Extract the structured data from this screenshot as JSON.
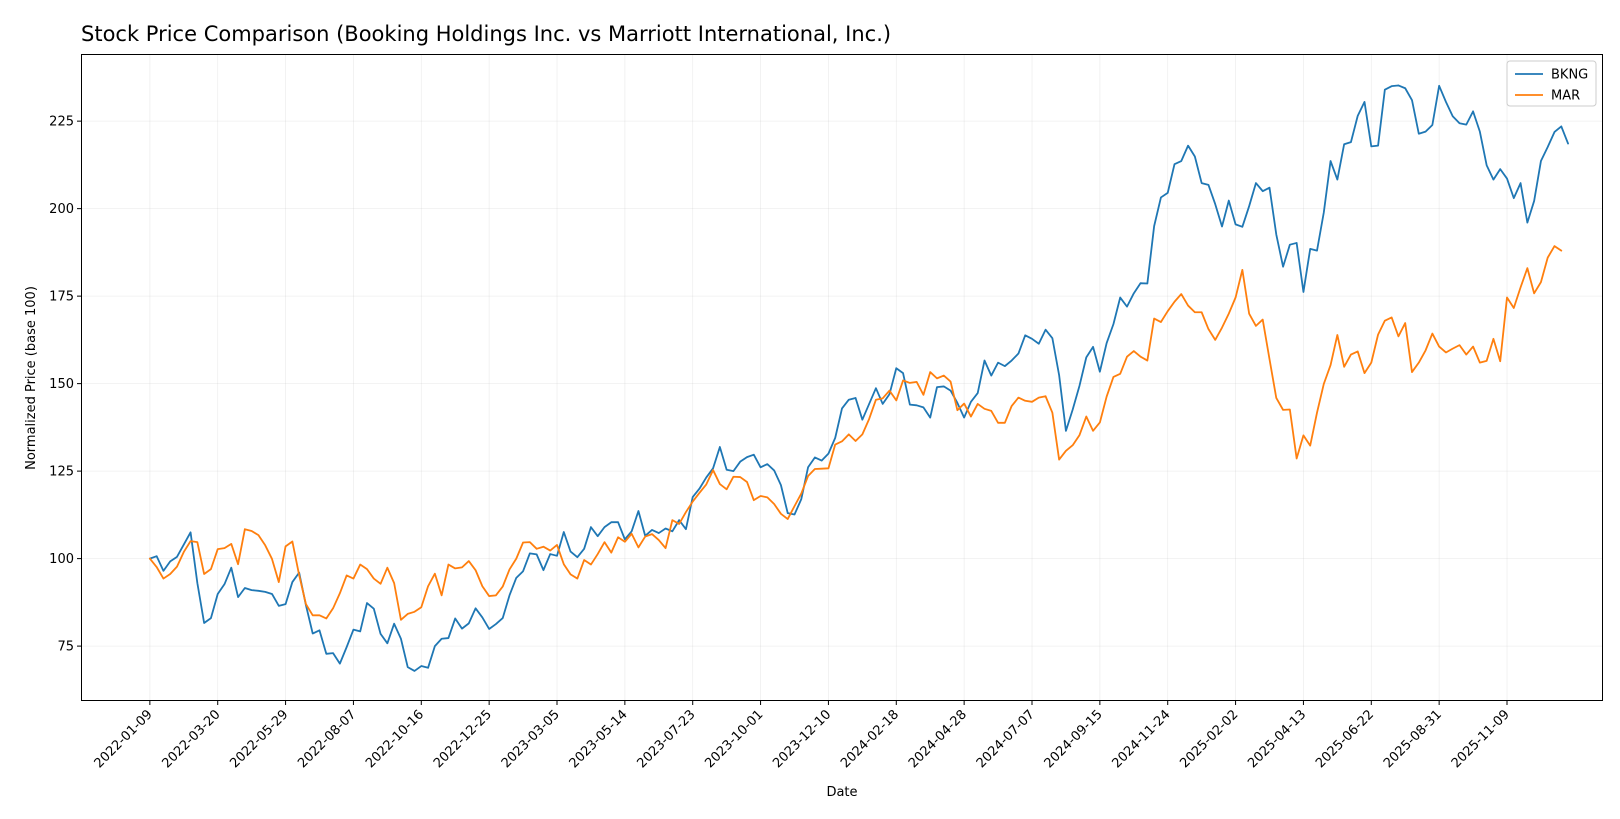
{
  "chart_data": {
    "type": "line",
    "title": "Stock Price Comparison (Booking Holdings Inc. vs Marriott International, Inc.)",
    "xlabel": "Date",
    "ylabel": "Normalized Price (base 100)",
    "ylim": [
      59.6,
      243.9
    ],
    "yticks": [
      75,
      100,
      125,
      150,
      175,
      200,
      225
    ],
    "x_start": "2022-01-09",
    "x_step_days": 7,
    "xlim_weeks": [
      -10,
      214
    ],
    "xticks": [
      {
        "label": "2022-01-09",
        "week": 0
      },
      {
        "label": "2022-03-20",
        "week": 10
      },
      {
        "label": "2022-05-29",
        "week": 20
      },
      {
        "label": "2022-08-07",
        "week": 30
      },
      {
        "label": "2022-10-16",
        "week": 40
      },
      {
        "label": "2022-12-25",
        "week": 50
      },
      {
        "label": "2023-03-05",
        "week": 60
      },
      {
        "label": "2023-05-14",
        "week": 70
      },
      {
        "label": "2023-07-23",
        "week": 80
      },
      {
        "label": "2023-10-01",
        "week": 90
      },
      {
        "label": "2023-12-10",
        "week": 100
      },
      {
        "label": "2024-02-18",
        "week": 110
      },
      {
        "label": "2024-04-28",
        "week": 120
      },
      {
        "label": "2024-07-07",
        "week": 130
      },
      {
        "label": "2024-09-15",
        "week": 140
      },
      {
        "label": "2024-11-24",
        "week": 150
      },
      {
        "label": "2025-02-02",
        "week": 160
      },
      {
        "label": "2025-04-13",
        "week": 170
      },
      {
        "label": "2025-06-22",
        "week": 180
      },
      {
        "label": "2025-08-31",
        "week": 190
      },
      {
        "label": "2025-11-09",
        "week": 200
      }
    ],
    "grid": true,
    "legend": "top-right",
    "series": [
      {
        "name": "BKNG",
        "color": "#1f77b4",
        "values": [
          100.0,
          100.7,
          96.5,
          99.2,
          100.5,
          104.0,
          107.5,
          93.0,
          81.6,
          83.0,
          89.9,
          92.7,
          97.4,
          89.0,
          91.6,
          91.0,
          90.8,
          90.5,
          89.9,
          86.5,
          87.0,
          93.3,
          96.0,
          86.7,
          78.6,
          79.5,
          72.8,
          73.0,
          70.0,
          74.7,
          79.7,
          79.2,
          87.3,
          85.7,
          78.5,
          75.8,
          81.4,
          77.1,
          69.0,
          67.9,
          69.3,
          68.8,
          75.0,
          77.1,
          77.3,
          82.9,
          80.0,
          81.5,
          85.8,
          83.2,
          79.9,
          81.3,
          83.0,
          89.5,
          94.5,
          96.4,
          101.5,
          101.2,
          96.7,
          101.3,
          100.8,
          107.6,
          102.0,
          100.4,
          102.8,
          109.0,
          106.4,
          109.0,
          110.4,
          110.4,
          105.5,
          107.8,
          113.6,
          106.5,
          108.2,
          107.3,
          108.6,
          107.8,
          111.0,
          108.4,
          117.6,
          120.0,
          123.2,
          125.8,
          131.9,
          125.4,
          125.0,
          127.7,
          129.0,
          129.7,
          126.1,
          127.0,
          125.2,
          121.0,
          113.0,
          112.6,
          117.0,
          126.1,
          128.9,
          128.0,
          130.0,
          134.5,
          142.9,
          145.4,
          145.9,
          139.7,
          144.2,
          148.7,
          144.2,
          147.0,
          154.4,
          153.0,
          144.0,
          143.8,
          143.2,
          140.3,
          149.0,
          149.2,
          148.0,
          144.5,
          140.3,
          144.8,
          147.3,
          156.6,
          152.3,
          156.0,
          155.0,
          156.6,
          158.6,
          163.8,
          162.8,
          161.4,
          165.4,
          163.0,
          152.4,
          136.5,
          142.6,
          149.4,
          157.5,
          160.5,
          153.4,
          161.6,
          167.0,
          174.6,
          172.0,
          175.8,
          178.7,
          178.6,
          195.0,
          203.2,
          204.5,
          212.7,
          213.6,
          218.0,
          214.9,
          207.3,
          206.8,
          201.3,
          194.9,
          202.3,
          195.5,
          194.8,
          200.7,
          207.3,
          205.0,
          206.0,
          192.6,
          183.4,
          189.7,
          190.2,
          176.2,
          188.5,
          188.0,
          198.9,
          213.6,
          208.3,
          218.4,
          219.0,
          226.5,
          230.5,
          217.8,
          218.0,
          234.0,
          235.0,
          235.2,
          234.4,
          231.0,
          221.4,
          222.0,
          223.9,
          235.1,
          230.5,
          226.4,
          224.4,
          224.0,
          227.8,
          222.0,
          212.4,
          208.3,
          211.3,
          208.6,
          203.0,
          207.3,
          196.0,
          202.2,
          213.6,
          217.6,
          221.9,
          223.5,
          218.6
        ]
      },
      {
        "name": "MAR",
        "color": "#ff7f0e",
        "values": [
          100.0,
          97.6,
          94.3,
          95.6,
          97.7,
          101.9,
          105.0,
          104.7,
          95.6,
          97.0,
          102.7,
          103.0,
          104.2,
          98.4,
          108.4,
          107.9,
          106.7,
          103.8,
          99.9,
          93.3,
          103.5,
          104.9,
          95.3,
          87.0,
          83.8,
          83.8,
          82.9,
          85.8,
          90.1,
          95.2,
          94.3,
          98.3,
          97.0,
          94.3,
          92.8,
          97.4,
          93.0,
          82.5,
          84.2,
          84.8,
          86.1,
          92.1,
          95.7,
          89.5,
          98.3,
          97.2,
          97.5,
          99.3,
          96.7,
          92.1,
          89.3,
          89.5,
          92.0,
          96.9,
          100.0,
          104.6,
          104.7,
          102.8,
          103.4,
          102.3,
          103.9,
          98.4,
          95.5,
          94.3,
          99.6,
          98.3,
          101.3,
          104.7,
          101.7,
          106.1,
          104.8,
          107.1,
          103.2,
          106.3,
          107.0,
          105.3,
          103.0,
          111.0,
          109.9,
          113.3,
          116.3,
          118.8,
          121.2,
          125.3,
          121.3,
          119.8,
          123.4,
          123.3,
          121.9,
          116.7,
          117.9,
          117.5,
          115.6,
          112.8,
          111.3,
          115.0,
          118.6,
          123.6,
          125.6,
          125.7,
          125.8,
          132.6,
          133.5,
          135.5,
          133.6,
          135.5,
          139.9,
          145.4,
          145.8,
          148.0,
          145.2,
          150.9,
          150.2,
          150.5,
          146.8,
          153.3,
          151.5,
          152.3,
          150.6,
          142.4,
          144.3,
          140.6,
          144.2,
          142.8,
          142.2,
          138.8,
          138.8,
          143.6,
          146.0,
          145.1,
          144.8,
          146.0,
          146.4,
          141.7,
          128.3,
          130.8,
          132.4,
          135.3,
          140.6,
          136.5,
          138.9,
          146.3,
          151.9,
          152.8,
          157.7,
          159.3,
          157.7,
          156.6,
          168.6,
          167.6,
          170.7,
          173.4,
          175.6,
          172.3,
          170.4,
          170.4,
          165.6,
          162.5,
          166.0,
          170.0,
          174.6,
          182.5,
          170.0,
          166.5,
          168.3,
          157.0,
          145.9,
          142.5,
          142.6,
          128.6,
          135.2,
          132.3,
          141.7,
          149.9,
          155.3,
          163.9,
          154.8,
          158.3,
          159.2,
          153.0,
          156.0,
          164.0,
          168.0,
          168.9,
          163.5,
          167.3,
          153.3,
          156.0,
          159.5,
          164.3,
          160.6,
          158.9,
          160.0,
          161.0,
          158.3,
          160.6,
          156.0,
          156.5,
          162.8,
          156.4,
          174.6,
          171.6,
          177.5,
          183.0,
          175.8,
          179.0,
          186.0,
          189.3,
          188.0
        ]
      }
    ]
  }
}
